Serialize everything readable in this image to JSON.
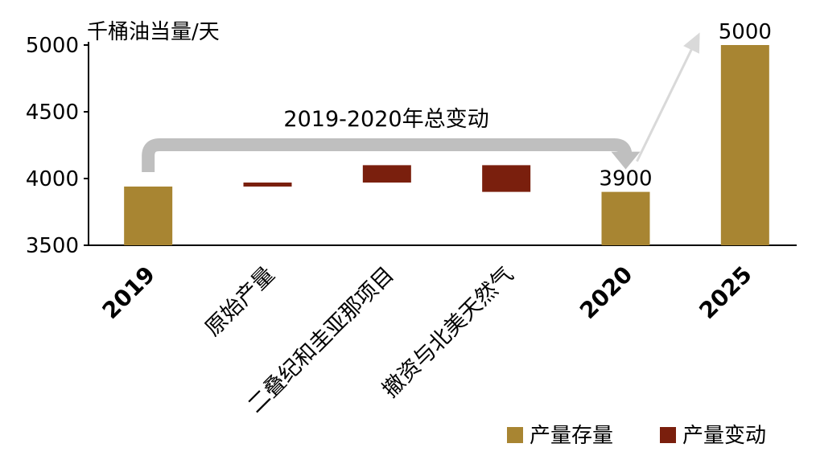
{
  "chart_data": {
    "type": "waterfall-bar",
    "y_unit_label": "千桶油当量/天",
    "ylim": [
      3500,
      5000
    ],
    "yticks": [
      3500,
      4000,
      4500,
      5000
    ],
    "categories": [
      "2019",
      "原始产量",
      "二叠纪和圭亚那项目",
      "撤资与北美天然气",
      "2020",
      "2025"
    ],
    "bars": [
      {
        "category": "2019",
        "kind": "stock",
        "bottom": 3500,
        "top": 3940
      },
      {
        "category": "原始产量",
        "kind": "change",
        "bottom": 3940,
        "top": 3970
      },
      {
        "category": "二叠纪和圭亚那项目",
        "kind": "change",
        "bottom": 3970,
        "top": 4100
      },
      {
        "category": "撤资与北美天然气",
        "kind": "change",
        "bottom": 3900,
        "top": 4100
      },
      {
        "category": "2020",
        "kind": "stock",
        "bottom": 3500,
        "top": 3900,
        "label": "3900"
      },
      {
        "category": "2025",
        "kind": "stock",
        "bottom": 3500,
        "top": 5000,
        "label": "5000"
      }
    ],
    "annotation": "2019-2020年总变动",
    "legend": [
      {
        "name": "产量存量",
        "color": "#A88532"
      },
      {
        "name": "产量变动",
        "color": "#7A1F0D"
      }
    ],
    "legend_position": "bottom-right",
    "grid": false
  }
}
